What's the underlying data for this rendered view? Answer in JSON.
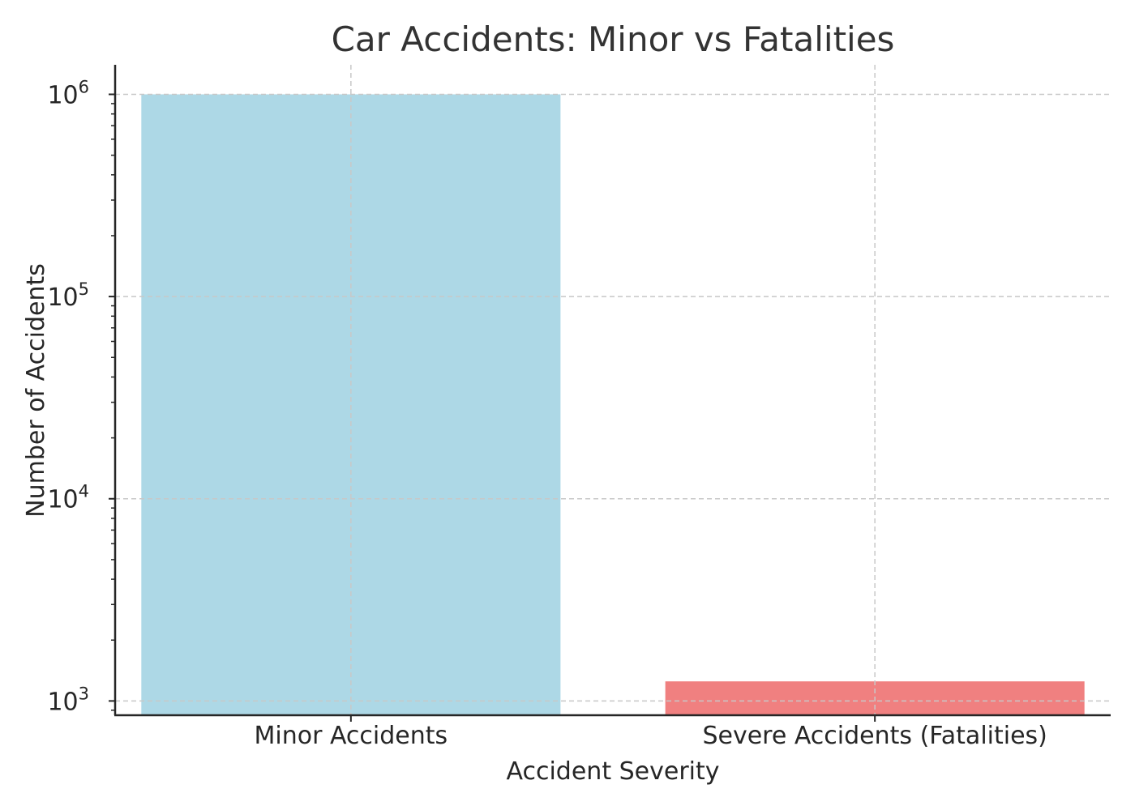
{
  "chart_data": {
    "type": "bar",
    "title": "Car Accidents: Minor vs Fatalities",
    "xlabel": "Accident Severity",
    "ylabel": "Number of Accidents",
    "categories": [
      "Minor Accidents",
      "Severe Accidents (Fatalities)"
    ],
    "values": [
      1000000,
      1250
    ],
    "colors": [
      "#add8e6",
      "#f08080"
    ],
    "yscale": "log",
    "ylim": [
      850,
      1400000
    ],
    "yticks": [
      {
        "value": 1000,
        "base": "10",
        "exp": "3"
      },
      {
        "value": 10000,
        "base": "10",
        "exp": "4"
      },
      {
        "value": 100000,
        "base": "10",
        "exp": "5"
      },
      {
        "value": 1000000,
        "base": "10",
        "exp": "6"
      }
    ],
    "grid": true
  }
}
